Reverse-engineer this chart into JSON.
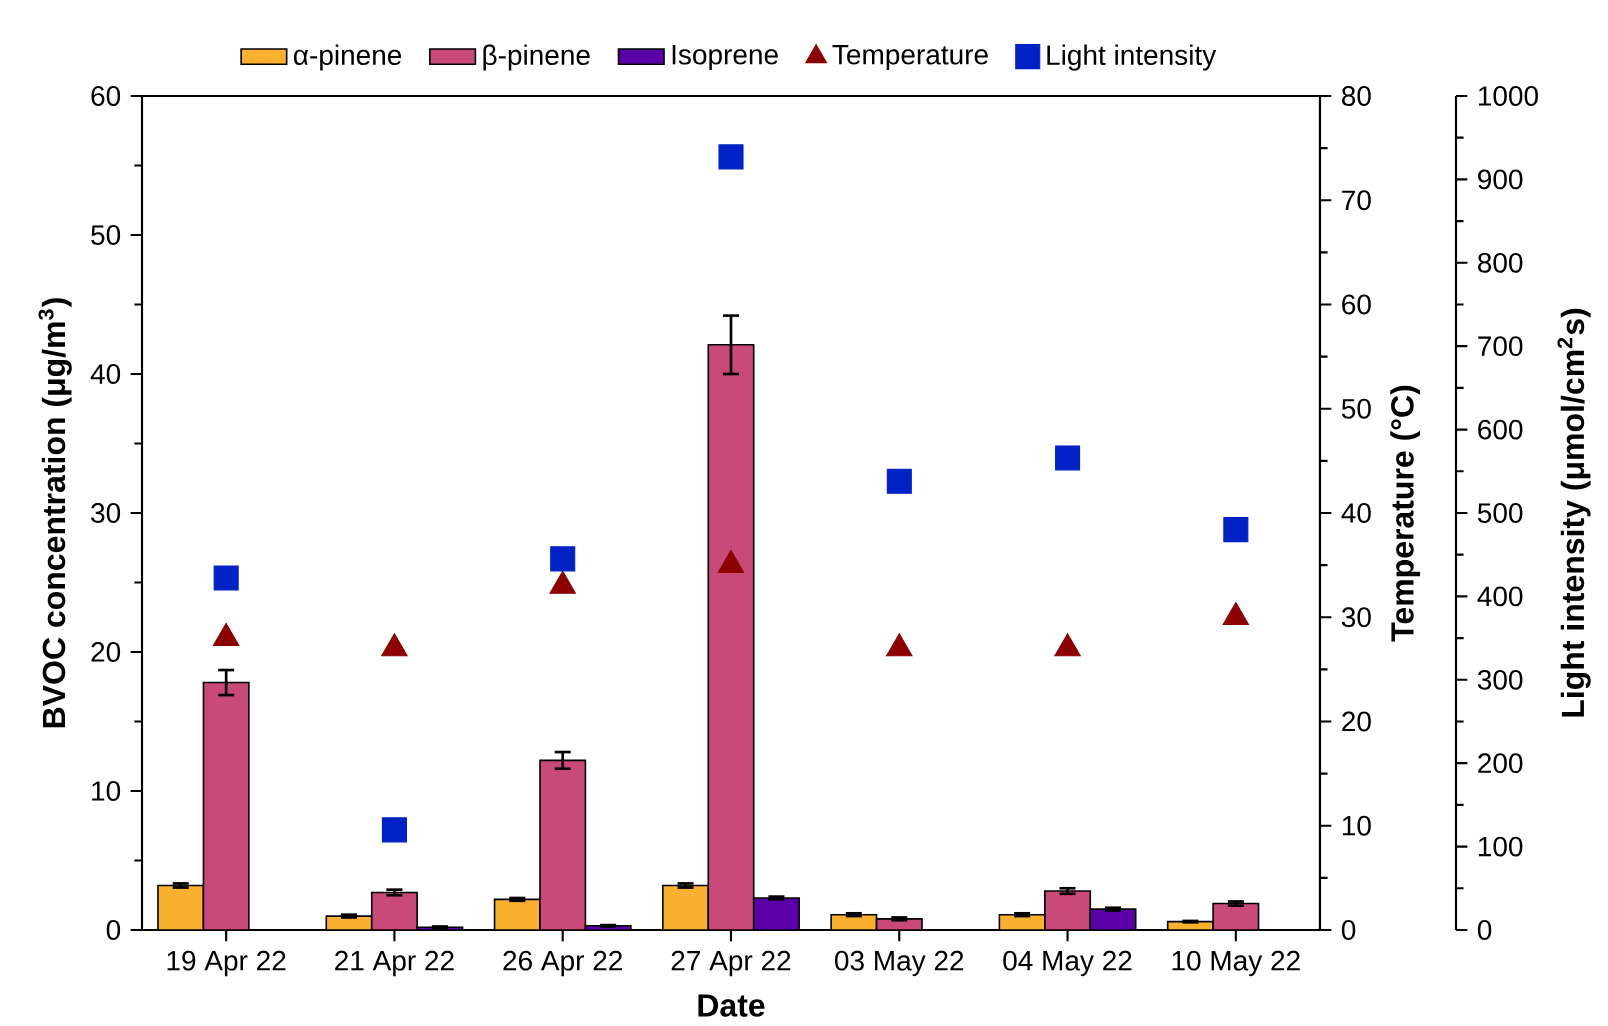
{
  "chart_data": {
    "type": "bar",
    "xlabel": "Date",
    "ylabel": "BVOC concentration (μg/m$^{3}$)",
    "y2label": "Temperature (°C)",
    "y3label": "Light intensity (μmol/cm$^{2}$s)",
    "categories": [
      "19 Apr 22",
      "21 Apr 22",
      "26 Apr 22",
      "27 Apr 22",
      "03 May 22",
      "04 May 22",
      "10 May 22"
    ],
    "series": [
      {
        "name": "α-pinene",
        "color": "#fbb12f",
        "values": [
          3.2,
          1.0,
          2.2,
          3.2,
          1.1,
          1.1,
          0.6
        ],
        "errors": [
          0.15,
          0.1,
          0.1,
          0.15,
          0.1,
          0.1,
          0.05
        ]
      },
      {
        "name": "β-pinene",
        "color": "#c94a78",
        "values": [
          17.8,
          2.7,
          12.2,
          42.1,
          0.8,
          2.8,
          1.9
        ],
        "errors": [
          0.9,
          0.2,
          0.6,
          2.1,
          0.1,
          0.2,
          0.15
        ]
      },
      {
        "name": "Isoprene",
        "color": "#5b00a8",
        "values": [
          null,
          0.2,
          0.3,
          2.3,
          null,
          1.5,
          null
        ],
        "errors": [
          null,
          0.05,
          0.05,
          0.1,
          null,
          0.1,
          null
        ]
      },
      {
        "name": "Temperature",
        "type": "scatter",
        "axis": "y2",
        "marker": "triangle",
        "color": "#8b0000",
        "values": [
          28,
          27,
          33,
          35,
          27,
          27,
          30
        ]
      },
      {
        "name": "Light intensity",
        "type": "scatter",
        "axis": "y3",
        "marker": "square",
        "color": "#0022c4",
        "values": [
          422,
          120,
          445,
          927,
          538,
          566,
          480
        ]
      }
    ],
    "ylim": [
      0,
      60
    ],
    "yticks": [
      0,
      10,
      20,
      30,
      40,
      50,
      60
    ],
    "y2lim": [
      0,
      80
    ],
    "y2ticks": [
      0,
      10,
      20,
      30,
      40,
      50,
      60,
      70,
      80
    ],
    "y3lim": [
      0,
      1000
    ],
    "y3ticks": [
      0,
      100,
      200,
      300,
      400,
      500,
      600,
      700,
      800,
      900,
      1000
    ],
    "legend": "top",
    "grid": false
  }
}
